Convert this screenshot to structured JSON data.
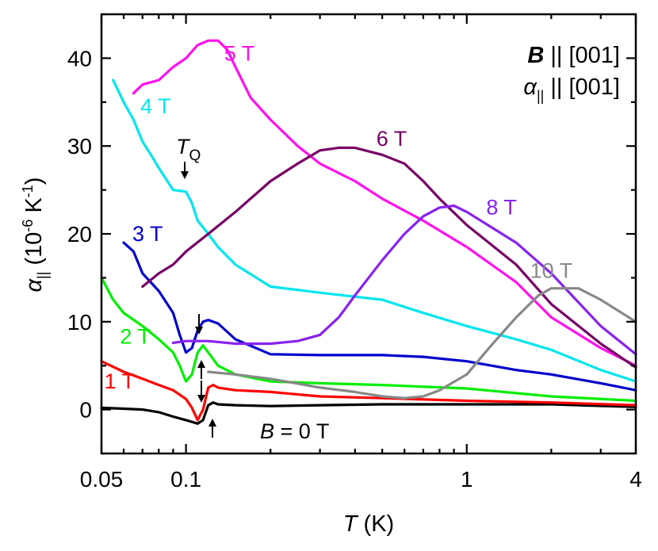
{
  "chart_data": {
    "type": "line",
    "xscale": "log",
    "xlim": [
      0.05,
      4
    ],
    "ylim": [
      -5,
      45
    ],
    "xlabel": {
      "italic": "T",
      "rest": " (K)"
    },
    "ylabel": {
      "alpha": "α",
      "sub": "||",
      "text": " (10",
      "exp1": "-6",
      "unit": " K",
      "exp2": "-1",
      "close": ")"
    },
    "xticks": [
      {
        "v": 0.05,
        "label": "0.05"
      },
      {
        "v": 0.1,
        "label": "0.1"
      },
      {
        "v": 1,
        "label": "1"
      },
      {
        "v": 4,
        "label": "4"
      }
    ],
    "yticks": [
      0,
      10,
      20,
      30,
      40
    ],
    "legend_text": [
      {
        "bold_italic": "B",
        "rest": " || [001]"
      },
      {
        "italic": "α",
        "sub": "||",
        "rest": " || [001]"
      }
    ],
    "annotations": {
      "tq": {
        "italic": "T",
        "sub": "Q"
      },
      "b0": {
        "italic": "B",
        "rest": " = 0 T"
      }
    },
    "series": [
      {
        "name": "B = 0 T",
        "color": "#000000",
        "x": [
          0.05,
          0.06,
          0.07,
          0.08,
          0.09,
          0.1,
          0.11,
          0.115,
          0.12,
          0.125,
          0.13,
          0.15,
          0.2,
          0.3,
          0.5,
          1,
          2,
          4
        ],
        "y": [
          0.2,
          0.1,
          0,
          -0.3,
          -0.8,
          -1.2,
          -1.6,
          -1.2,
          0.5,
          0.8,
          0.6,
          0.5,
          0.4,
          0.5,
          0.6,
          0.6,
          0.6,
          0.3
        ]
      },
      {
        "name": "1 T",
        "color": "#ff0000",
        "x": [
          0.05,
          0.06,
          0.07,
          0.08,
          0.09,
          0.1,
          0.105,
          0.11,
          0.115,
          0.12,
          0.125,
          0.13,
          0.15,
          0.2,
          0.3,
          0.5,
          1,
          2,
          4
        ],
        "y": [
          5.5,
          4.3,
          3.5,
          2.8,
          2.2,
          1.2,
          0.2,
          -1.2,
          0,
          2.5,
          2.8,
          2.5,
          2.2,
          2,
          1.5,
          1.3,
          1,
          0.8,
          0.5
        ]
      },
      {
        "name": "2 T",
        "color": "#00ee00",
        "x": [
          0.05,
          0.055,
          0.06,
          0.07,
          0.08,
          0.09,
          0.095,
          0.1,
          0.105,
          0.11,
          0.115,
          0.12,
          0.13,
          0.15,
          0.2,
          0.3,
          0.5,
          1,
          2,
          4
        ],
        "y": [
          15,
          12.5,
          11,
          9.5,
          8,
          6.5,
          5,
          3.2,
          4,
          6.5,
          7.3,
          6.5,
          5,
          4,
          3.2,
          3,
          2.8,
          2.4,
          1.5,
          1
        ]
      },
      {
        "name": "3 T",
        "color": "#0000cc",
        "x": [
          0.06,
          0.065,
          0.07,
          0.08,
          0.09,
          0.095,
          0.1,
          0.105,
          0.11,
          0.115,
          0.12,
          0.13,
          0.15,
          0.2,
          0.3,
          0.5,
          0.7,
          1,
          1.5,
          2,
          3,
          4
        ],
        "y": [
          19,
          18,
          15.5,
          13.5,
          11,
          8.5,
          6.5,
          7,
          9,
          10,
          10.2,
          9.8,
          8,
          6.3,
          6.2,
          6.2,
          6,
          5.5,
          4.5,
          4,
          3,
          2.2
        ]
      },
      {
        "name": "4 T",
        "color": "#00e5ee",
        "x": [
          0.055,
          0.06,
          0.065,
          0.07,
          0.075,
          0.08,
          0.09,
          0.1,
          0.105,
          0.11,
          0.12,
          0.13,
          0.15,
          0.2,
          0.3,
          0.5,
          0.7,
          1,
          1.5,
          2,
          3,
          4
        ],
        "y": [
          37.5,
          35,
          33,
          30.5,
          29,
          27.5,
          25,
          24.8,
          23.5,
          21.5,
          20,
          18.5,
          16.5,
          14,
          13.3,
          12.5,
          11,
          9.5,
          8,
          6.8,
          4.5,
          3.2
        ]
      },
      {
        "name": "5 T",
        "color": "#ff11ee",
        "x": [
          0.065,
          0.07,
          0.08,
          0.09,
          0.1,
          0.11,
          0.12,
          0.13,
          0.14,
          0.15,
          0.17,
          0.2,
          0.25,
          0.3,
          0.4,
          0.5,
          0.7,
          1,
          1.5,
          2,
          3,
          4
        ],
        "y": [
          36,
          37,
          37.5,
          39,
          40,
          41.5,
          42,
          42,
          41,
          39,
          35.5,
          33,
          30,
          28,
          26,
          24,
          21.5,
          18.5,
          14.5,
          10.5,
          7,
          5
        ]
      },
      {
        "name": "6 T",
        "color": "#770066",
        "x": [
          0.07,
          0.08,
          0.09,
          0.1,
          0.12,
          0.15,
          0.2,
          0.25,
          0.3,
          0.35,
          0.4,
          0.5,
          0.6,
          0.7,
          0.8,
          1,
          1.5,
          2,
          3,
          4
        ],
        "y": [
          14,
          15.5,
          16.5,
          18,
          20,
          22.5,
          26,
          28,
          29.5,
          29.8,
          29.8,
          29,
          28,
          26,
          24,
          21,
          16.5,
          12,
          7.5,
          4.8
        ]
      },
      {
        "name": "8 T",
        "color": "#8822ee",
        "x": [
          0.09,
          0.1,
          0.12,
          0.15,
          0.2,
          0.25,
          0.3,
          0.35,
          0.4,
          0.5,
          0.6,
          0.7,
          0.8,
          0.9,
          1,
          1.5,
          2,
          3,
          4
        ],
        "y": [
          7.6,
          7.8,
          7.8,
          7.5,
          7.5,
          7.8,
          8.5,
          10.5,
          13,
          17,
          20,
          22,
          23,
          23.2,
          22.5,
          19,
          15.5,
          9.5,
          6.3
        ]
      },
      {
        "name": "10 T",
        "color": "#888888",
        "x": [
          0.12,
          0.15,
          0.2,
          0.3,
          0.4,
          0.5,
          0.6,
          0.7,
          0.8,
          1,
          1.2,
          1.5,
          1.8,
          2,
          2.5,
          3,
          4
        ],
        "y": [
          4.3,
          4,
          3.5,
          2.5,
          2,
          1.5,
          1.3,
          1.5,
          2.2,
          4,
          7,
          10.5,
          13,
          13.8,
          13.8,
          12.5,
          10
        ]
      }
    ],
    "series_labels": [
      {
        "name": "1 T",
        "text": "1 T",
        "color": "#ff0000"
      },
      {
        "name": "2 T",
        "text": "2 T",
        "color": "#00ee00"
      },
      {
        "name": "3 T",
        "text": "3 T",
        "color": "#0000cc"
      },
      {
        "name": "4 T",
        "text": "4 T",
        "color": "#00e5ee"
      },
      {
        "name": "5 T",
        "text": "5 T",
        "color": "#ff11ee"
      },
      {
        "name": "6 T",
        "text": "6 T",
        "color": "#770066"
      },
      {
        "name": "8 T",
        "text": "8 T",
        "color": "#8822ee"
      },
      {
        "name": "10 T",
        "text": "10 T",
        "color": "#888888"
      }
    ]
  }
}
